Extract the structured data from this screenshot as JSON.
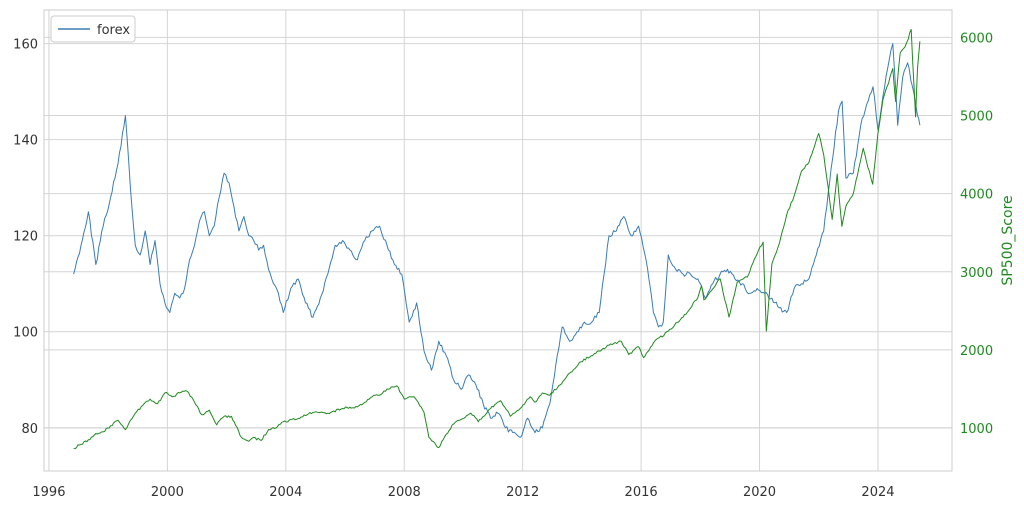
{
  "chart_data": {
    "type": "line",
    "xlabel": "",
    "ylabel": "",
    "y2label": "SP500_Score",
    "xlim": [
      "1995-11-01",
      "2026-07-01"
    ],
    "ylim": [
      71,
      167
    ],
    "y2lim": [
      450,
      6350
    ],
    "x_ticks": [
      "1996",
      "2000",
      "2004",
      "2008",
      "2012",
      "2016",
      "2020",
      "2024"
    ],
    "y_ticks": [
      80,
      100,
      120,
      140,
      160
    ],
    "y2_ticks": [
      1000,
      2000,
      3000,
      4000,
      5000,
      6000
    ],
    "grid": true,
    "legend": {
      "position": "top-left",
      "entries": [
        "forex"
      ]
    },
    "colors": {
      "forex": "#3a7db3",
      "sp500": "#1f8a1f"
    },
    "series": [
      {
        "name": "forex",
        "axis": "left",
        "x": [
          "1996-11-01",
          "1997-02-01",
          "1997-05-01",
          "1997-08-01",
          "1997-11-01",
          "1998-02-01",
          "1998-05-01",
          "1998-08-01",
          "1998-10-01",
          "1998-12-01",
          "1999-02-01",
          "1999-04-01",
          "1999-06-01",
          "1999-08-01",
          "1999-10-01",
          "1999-12-01",
          "2000-02-01",
          "2000-04-01",
          "2000-06-01",
          "2000-08-01",
          "2000-10-01",
          "2000-12-01",
          "2001-02-01",
          "2001-04-01",
          "2001-06-01",
          "2001-08-01",
          "2001-10-01",
          "2001-12-01",
          "2002-02-01",
          "2002-04-01",
          "2002-06-01",
          "2002-08-01",
          "2002-10-01",
          "2002-12-01",
          "2003-02-01",
          "2003-04-01",
          "2003-06-01",
          "2003-08-01",
          "2003-10-01",
          "2003-12-01",
          "2004-03-01",
          "2004-06-01",
          "2004-09-01",
          "2004-12-01",
          "2005-03-01",
          "2005-06-01",
          "2005-09-01",
          "2005-12-01",
          "2006-03-01",
          "2006-06-01",
          "2006-09-01",
          "2006-12-01",
          "2007-03-01",
          "2007-06-01",
          "2007-09-01",
          "2007-12-01",
          "2008-03-01",
          "2008-06-01",
          "2008-09-01",
          "2008-12-01",
          "2009-03-01",
          "2009-06-01",
          "2009-09-01",
          "2009-12-01",
          "2010-03-01",
          "2010-06-01",
          "2010-09-01",
          "2010-12-01",
          "2011-03-01",
          "2011-06-01",
          "2011-09-01",
          "2011-12-01",
          "2012-03-01",
          "2012-06-01",
          "2012-09-01",
          "2012-12-01",
          "2013-03-01",
          "2013-05-01",
          "2013-08-01",
          "2013-11-01",
          "2014-02-01",
          "2014-05-01",
          "2014-08-01",
          "2014-10-01",
          "2014-12-01",
          "2015-03-01",
          "2015-06-01",
          "2015-09-01",
          "2015-12-01",
          "2016-03-01",
          "2016-06-01",
          "2016-08-01",
          "2016-10-01",
          "2016-12-01",
          "2017-03-01",
          "2017-06-01",
          "2017-09-01",
          "2017-12-01",
          "2018-03-01",
          "2018-06-01",
          "2018-09-01",
          "2018-12-01",
          "2019-03-01",
          "2019-06-01",
          "2019-09-01",
          "2019-12-01",
          "2020-03-01",
          "2020-06-01",
          "2020-09-01",
          "2020-12-01",
          "2021-03-01",
          "2021-06-01",
          "2021-09-01",
          "2021-12-01",
          "2022-03-01",
          "2022-06-01",
          "2022-09-01",
          "2022-10-15",
          "2022-12-01",
          "2023-03-01",
          "2023-06-01",
          "2023-09-01",
          "2023-11-01",
          "2024-01-01",
          "2024-03-01",
          "2024-05-01",
          "2024-07-01",
          "2024-09-01",
          "2024-11-01",
          "2025-01-01",
          "2025-03-01",
          "2025-05-01",
          "2025-06-01"
        ],
        "values": [
          112,
          118,
          125,
          114,
          122,
          128,
          135,
          145,
          130,
          118,
          116,
          121,
          114,
          119,
          110,
          106,
          104,
          108,
          107,
          109,
          115,
          118,
          123,
          125,
          120,
          122,
          128,
          133,
          131,
          126,
          121,
          124,
          120,
          119,
          117,
          118,
          113,
          110,
          108,
          104,
          109,
          111,
          106,
          103,
          107,
          112,
          118,
          119,
          117,
          115,
          119,
          121,
          122,
          118,
          114,
          112,
          102,
          106,
          96,
          92,
          98,
          95,
          90,
          88,
          91,
          89,
          85,
          82,
          83,
          80,
          79,
          78,
          82,
          79,
          80,
          85,
          95,
          101,
          98,
          100,
          102,
          102,
          104,
          112,
          120,
          121,
          124,
          120,
          122,
          115,
          104,
          101,
          102,
          116,
          113,
          112,
          112,
          111,
          107,
          110,
          112,
          113,
          111,
          110,
          108,
          109,
          108,
          107,
          105,
          104,
          109,
          110,
          111,
          116,
          121,
          134,
          146,
          148,
          132,
          133,
          143,
          148,
          151,
          142,
          149,
          155,
          160,
          143,
          153,
          156,
          151,
          145,
          143
        ]
      },
      {
        "name": "SP500_Score",
        "axis": "right",
        "x": [
          "1996-11-01",
          "1997-02-01",
          "1997-05-01",
          "1997-08-01",
          "1997-11-01",
          "1998-02-01",
          "1998-05-01",
          "1998-08-01",
          "1998-10-01",
          "1998-12-01",
          "1999-03-01",
          "1999-06-01",
          "1999-09-01",
          "1999-12-01",
          "2000-03-01",
          "2000-06-01",
          "2000-09-01",
          "2000-12-01",
          "2001-03-01",
          "2001-06-01",
          "2001-09-01",
          "2001-12-01",
          "2002-03-01",
          "2002-07-01",
          "2002-10-01",
          "2002-12-01",
          "2003-03-01",
          "2003-06-01",
          "2003-09-01",
          "2003-12-01",
          "2004-06-01",
          "2004-12-01",
          "2005-06-01",
          "2005-12-01",
          "2006-06-01",
          "2006-12-01",
          "2007-03-01",
          "2007-06-01",
          "2007-10-01",
          "2008-01-01",
          "2008-05-01",
          "2008-09-01",
          "2008-11-01",
          "2009-03-01",
          "2009-06-01",
          "2009-09-01",
          "2009-12-01",
          "2010-04-01",
          "2010-07-01",
          "2010-12-01",
          "2011-04-01",
          "2011-08-01",
          "2011-12-01",
          "2012-04-01",
          "2012-06-01",
          "2012-09-01",
          "2012-12-01",
          "2013-06-01",
          "2013-12-01",
          "2014-06-01",
          "2014-12-01",
          "2015-05-01",
          "2015-08-01",
          "2015-12-01",
          "2016-02-01",
          "2016-06-01",
          "2016-12-01",
          "2017-06-01",
          "2017-12-01",
          "2018-01-15",
          "2018-02-15",
          "2018-09-01",
          "2018-12-20",
          "2019-04-01",
          "2019-08-01",
          "2019-12-01",
          "2020-02-15",
          "2020-03-23",
          "2020-06-01",
          "2020-09-01",
          "2020-12-01",
          "2021-03-01",
          "2021-06-01",
          "2021-09-01",
          "2021-12-31",
          "2022-03-01",
          "2022-06-15",
          "2022-08-15",
          "2022-10-12",
          "2022-12-01",
          "2023-03-01",
          "2023-07-01",
          "2023-10-27",
          "2023-12-31",
          "2024-03-01",
          "2024-07-01",
          "2024-08-05",
          "2024-10-01",
          "2024-12-01",
          "2025-02-15",
          "2025-04-08",
          "2025-05-01",
          "2025-06-01"
        ],
        "values": [
          740,
          790,
          850,
          930,
          950,
          1030,
          1100,
          980,
          1100,
          1190,
          1290,
          1370,
          1310,
          1450,
          1400,
          1450,
          1470,
          1330,
          1170,
          1230,
          1040,
          1150,
          1150,
          880,
          830,
          880,
          840,
          980,
          1000,
          1080,
          1120,
          1200,
          1190,
          1250,
          1270,
          1400,
          1420,
          1500,
          1540,
          1370,
          1400,
          1200,
          880,
          750,
          920,
          1050,
          1110,
          1190,
          1080,
          1250,
          1350,
          1150,
          1250,
          1400,
          1330,
          1450,
          1420,
          1620,
          1840,
          1950,
          2060,
          2110,
          1940,
          2040,
          1900,
          2090,
          2240,
          2420,
          2670,
          2820,
          2640,
          2910,
          2420,
          2870,
          2930,
          3230,
          3380,
          2240,
          3100,
          3360,
          3730,
          3970,
          4290,
          4400,
          4770,
          4500,
          3670,
          4250,
          3580,
          3840,
          4000,
          4580,
          4120,
          4770,
          5200,
          5600,
          5180,
          5800,
          5880,
          6100,
          4980,
          5600,
          5950
        ]
      }
    ]
  }
}
